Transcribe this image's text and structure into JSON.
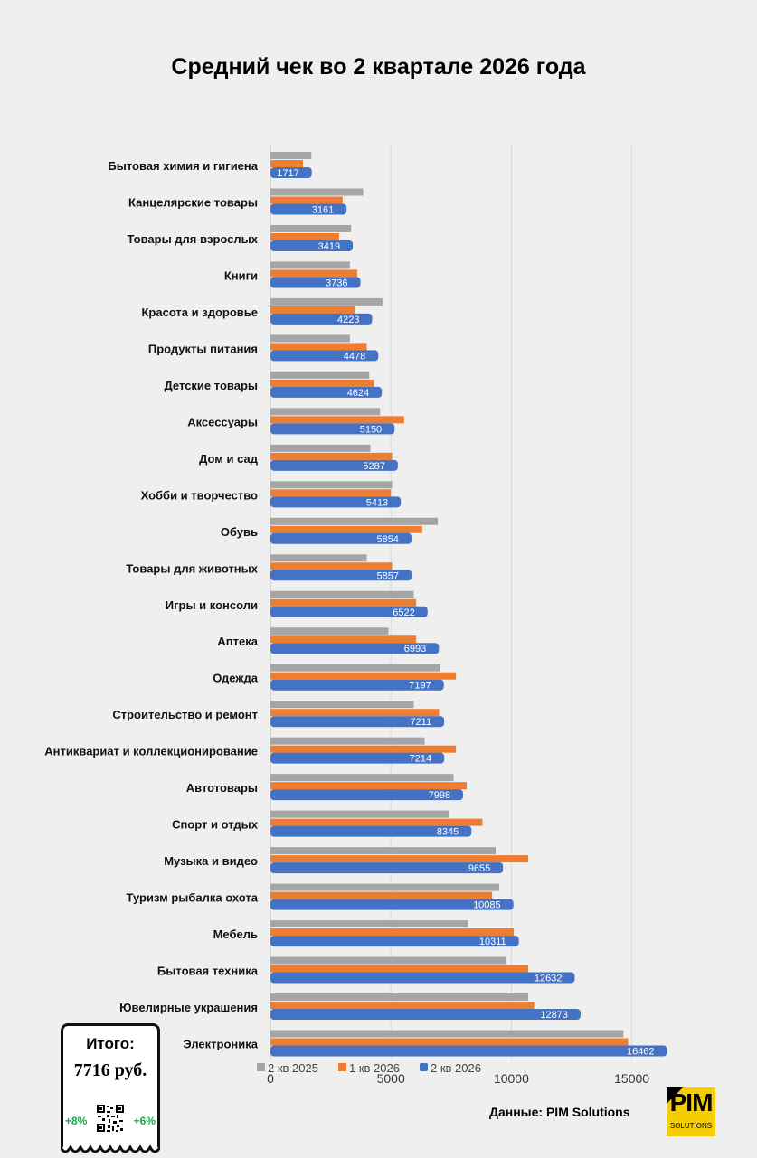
{
  "chart_data": {
    "type": "bar",
    "orientation": "horizontal",
    "title": "Средний чек во 2 квартале 2026 года",
    "categories": [
      "Бытовая химия и гигиена",
      "Канцелярские товары",
      "Товары для взрослых",
      "Книги",
      "Красота и здоровье",
      "Продукты питания",
      "Детские товары",
      "Аксессуары",
      "Дом и сад",
      "Хобби и творчество",
      "Обувь",
      "Товары для животных",
      "Игры и консоли",
      "Аптека",
      "Одежда",
      "Строительство и ремонт",
      "Антиквариат и коллекционирование",
      "Автотовары",
      "Спорт и отдых",
      "Музыка и видео",
      "Туризм рыбалка охота",
      "Мебель",
      "Бытовая техника",
      "Ювелирные украшения",
      "Электроника"
    ],
    "series": [
      {
        "name": "2 кв 2025",
        "color": "#a5a5a5",
        "values": [
          1700,
          3850,
          3350,
          3300,
          4650,
          3300,
          4100,
          4550,
          4150,
          5050,
          6950,
          4000,
          5950,
          4900,
          7050,
          5950,
          6400,
          7600,
          7400,
          9350,
          9500,
          8200,
          9800,
          10700,
          14650
        ]
      },
      {
        "name": "1 кв 2026",
        "color": "#ed7d31",
        "values": [
          1350,
          3000,
          2850,
          3600,
          3500,
          4000,
          4300,
          5550,
          5050,
          5000,
          6300,
          5050,
          6050,
          6050,
          7700,
          7000,
          7700,
          8150,
          8800,
          10700,
          9200,
          10100,
          10700,
          10950,
          14850
        ]
      },
      {
        "name": "2 кв 2026",
        "color": "#4472c4",
        "values": [
          1717,
          3161,
          3419,
          3736,
          4223,
          4478,
          4624,
          5150,
          5287,
          5413,
          5854,
          5857,
          6522,
          6993,
          7197,
          7211,
          7214,
          7998,
          8345,
          9655,
          10085,
          10311,
          12632,
          12873,
          16462
        ],
        "data_labels": [
          "1717",
          "3161",
          "3419",
          "3736",
          "4223",
          "4478",
          "4624",
          "5150",
          "5287",
          "5413",
          "5854",
          "5857",
          "6522",
          "6993",
          "7197",
          "7211",
          "7214",
          "7998",
          "8345",
          "9655",
          "10085",
          "10311",
          "12632",
          "12873",
          "16462"
        ]
      }
    ],
    "x_ticks": [
      "0",
      "5000",
      "10000",
      "15000"
    ],
    "xlim": [
      0,
      17000
    ],
    "grid": true,
    "legend_position": "bottom"
  },
  "source_text": "Данные: PIM Solutions",
  "logo": {
    "text": "PIM",
    "subtext": "SOLUTIONS",
    "color": "#f5cd00"
  },
  "summary": {
    "label": "Итого:",
    "total": "7716 руб.",
    "left_change": "+8%",
    "right_change": "+6%",
    "change_color": "#1aa64a"
  }
}
